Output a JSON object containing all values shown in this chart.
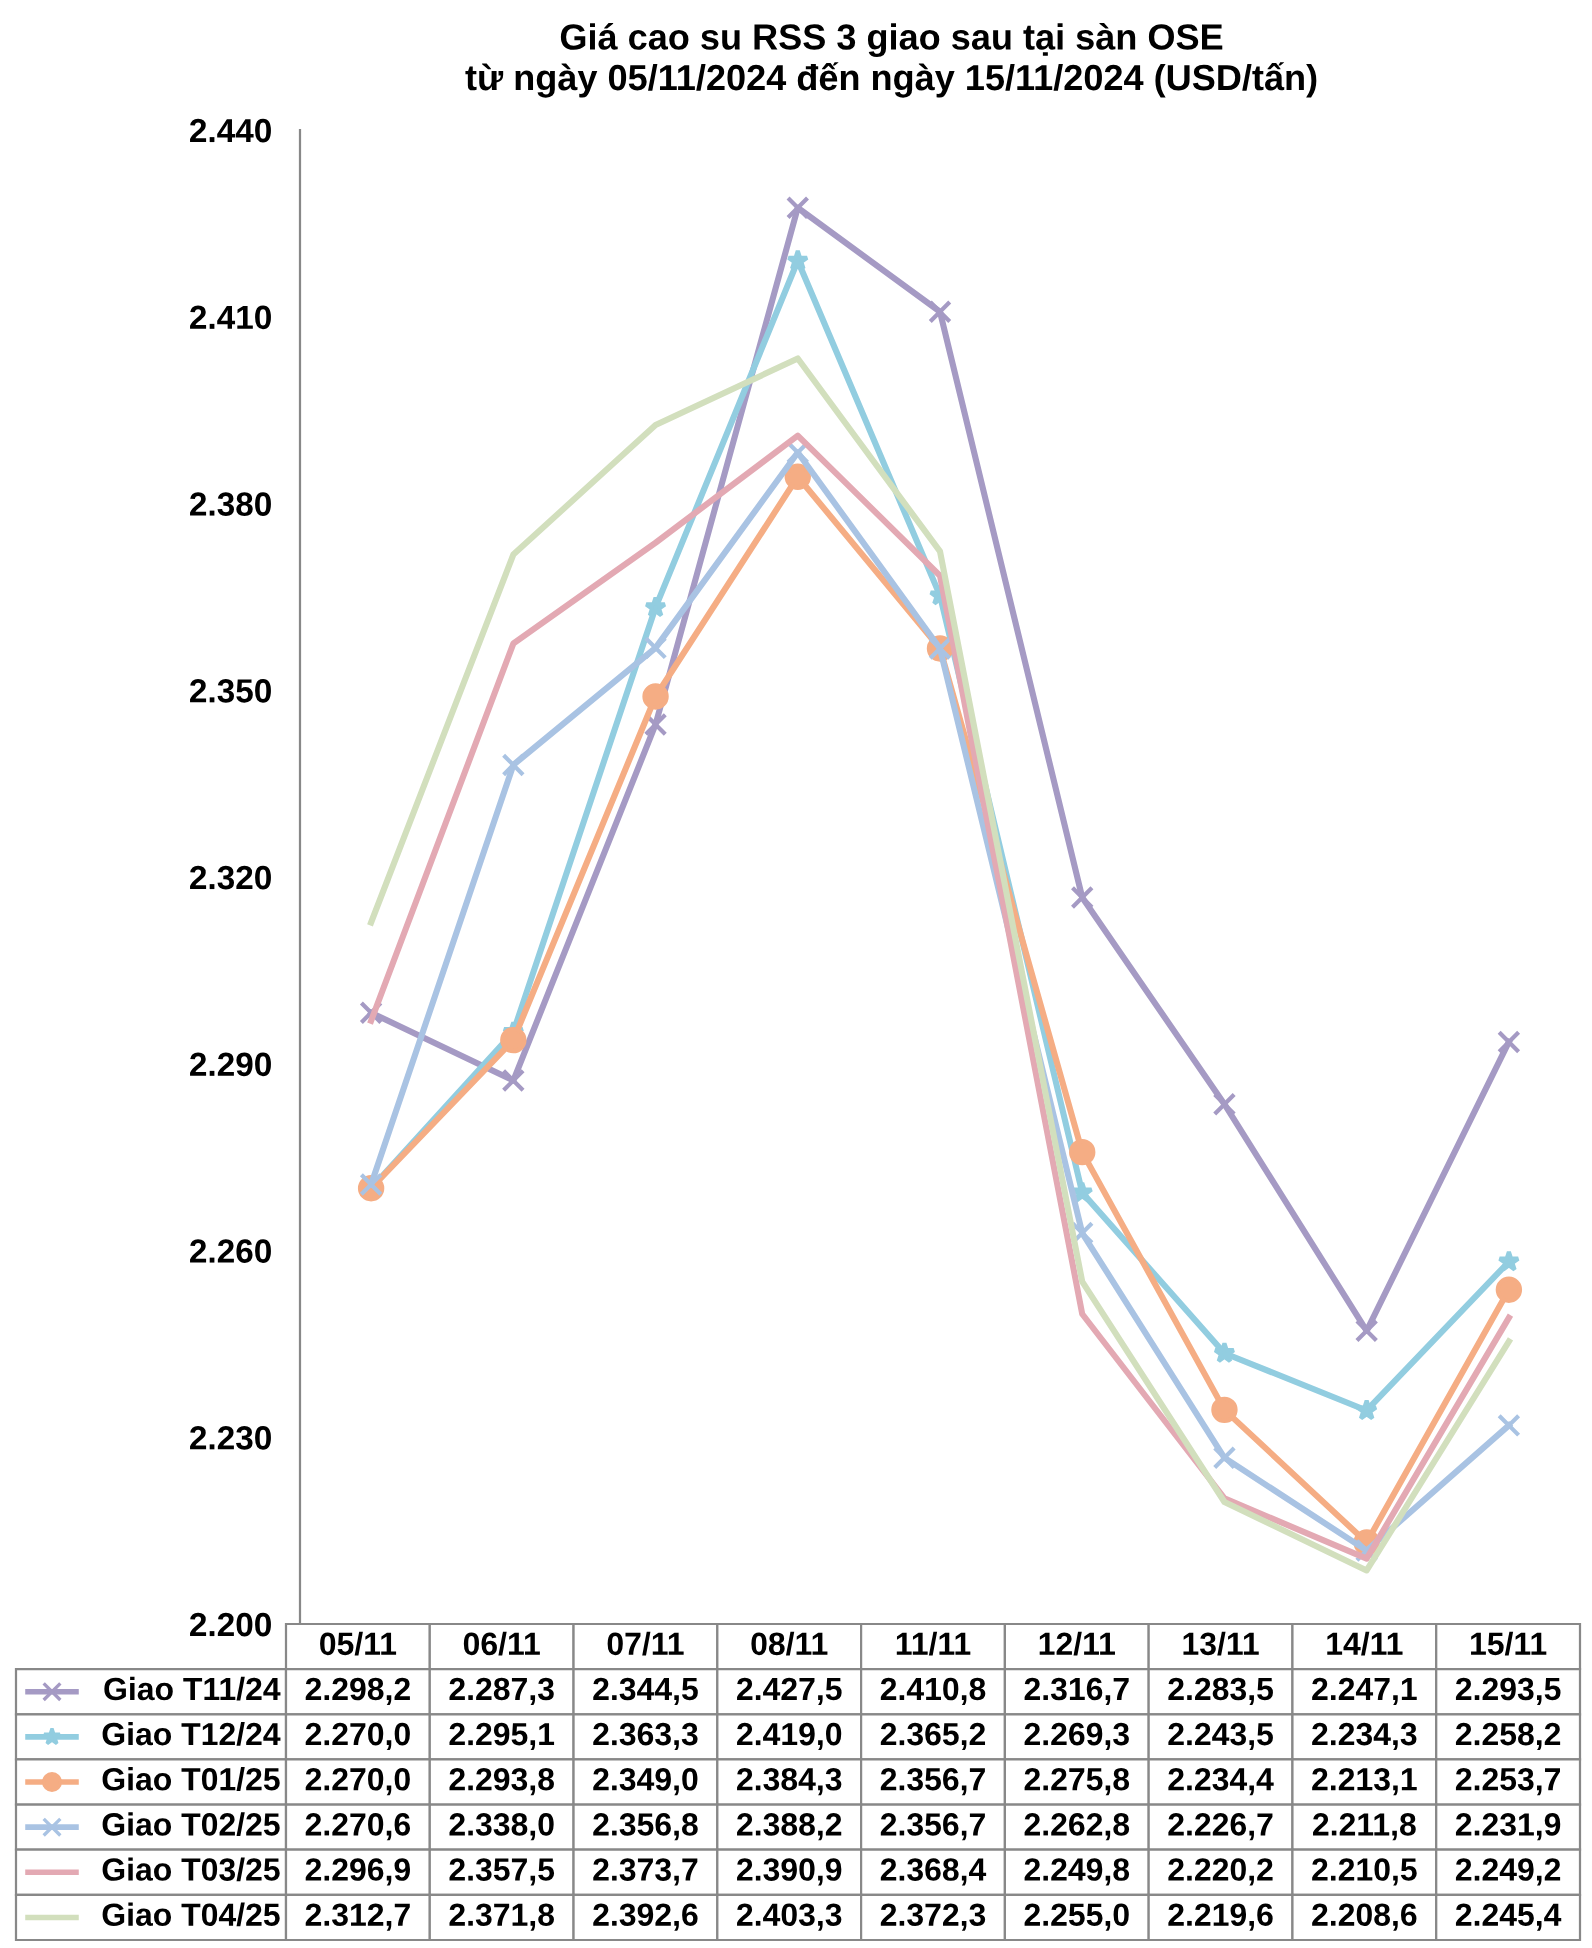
{
  "chart_data": {
    "type": "line",
    "title": "Giá cao su RSS 3 giao sau tại sàn OSE",
    "subtitle": "từ ngày 05/11/2024 đến ngày 15/11/2024 (USD/tấn)",
    "categories": [
      "05/11",
      "06/11",
      "07/11",
      "08/11",
      "11/11",
      "12/11",
      "13/11",
      "14/11",
      "15/11"
    ],
    "ylim": [
      2200,
      2440
    ],
    "yticks": [
      {
        "value": 2200,
        "label": "2.200"
      },
      {
        "value": 2230,
        "label": "2.230"
      },
      {
        "value": 2260,
        "label": "2.260"
      },
      {
        "value": 2290,
        "label": "2.290"
      },
      {
        "value": 2320,
        "label": "2.320"
      },
      {
        "value": 2350,
        "label": "2.350"
      },
      {
        "value": 2380,
        "label": "2.380"
      },
      {
        "value": 2410,
        "label": "2.410"
      },
      {
        "value": 2440,
        "label": "2.440"
      }
    ],
    "grid": false,
    "legend": "bottom",
    "series": [
      {
        "name": "Giao T11/24",
        "color": "#a59ac4",
        "marker": "cross",
        "values": [
          2298.2,
          2287.3,
          2344.5,
          2427.5,
          2410.8,
          2316.7,
          2283.5,
          2247.1,
          2293.5
        ],
        "value_labels": [
          "2.298,2",
          "2.287,3",
          "2.344,5",
          "2.427,5",
          "2.410,8",
          "2.316,7",
          "2.283,5",
          "2.247,1",
          "2.293,5"
        ]
      },
      {
        "name": "Giao T12/24",
        "color": "#92cde0",
        "marker": "star",
        "values": [
          2270.0,
          2295.1,
          2363.3,
          2419.0,
          2365.2,
          2269.3,
          2243.5,
          2234.3,
          2258.2
        ],
        "value_labels": [
          "2.270,0",
          "2.295,1",
          "2.363,3",
          "2.419,0",
          "2.365,2",
          "2.269,3",
          "2.243,5",
          "2.234,3",
          "2.258,2"
        ]
      },
      {
        "name": "Giao T01/25",
        "color": "#f5ad84",
        "marker": "circle",
        "values": [
          2270.0,
          2293.8,
          2349.0,
          2384.3,
          2356.7,
          2275.8,
          2234.4,
          2213.1,
          2253.7
        ],
        "value_labels": [
          "2.270,0",
          "2.293,8",
          "2.349,0",
          "2.384,3",
          "2.356,7",
          "2.275,8",
          "2.234,4",
          "2.213,1",
          "2.253,7"
        ]
      },
      {
        "name": "Giao T02/25",
        "color": "#a9c3e3",
        "marker": "cross",
        "values": [
          2270.6,
          2338.0,
          2356.8,
          2388.2,
          2356.7,
          2262.8,
          2226.7,
          2211.8,
          2231.9
        ],
        "value_labels": [
          "2.270,6",
          "2.338,0",
          "2.356,8",
          "2.388,2",
          "2.356,7",
          "2.262,8",
          "2.226,7",
          "2.211,8",
          "2.231,9"
        ]
      },
      {
        "name": "Giao T03/25",
        "color": "#e3a9b3",
        "marker": "none",
        "values": [
          2296.9,
          2357.5,
          2373.7,
          2390.9,
          2368.4,
          2249.8,
          2220.2,
          2210.5,
          2249.2
        ],
        "value_labels": [
          "2.296,9",
          "2.357,5",
          "2.373,7",
          "2.390,9",
          "2.368,4",
          "2.249,8",
          "2.220,2",
          "2.210,5",
          "2.249,2"
        ]
      },
      {
        "name": "Giao T04/25",
        "color": "#d2dfbd",
        "marker": "none",
        "values": [
          2312.7,
          2371.8,
          2392.6,
          2403.3,
          2372.3,
          2255.0,
          2219.6,
          2208.6,
          2245.4
        ],
        "value_labels": [
          "2.312,7",
          "2.371,8",
          "2.392,6",
          "2.403,3",
          "2.372,3",
          "2.255,0",
          "2.219,6",
          "2.208,6",
          "2.245,4"
        ]
      }
    ]
  }
}
